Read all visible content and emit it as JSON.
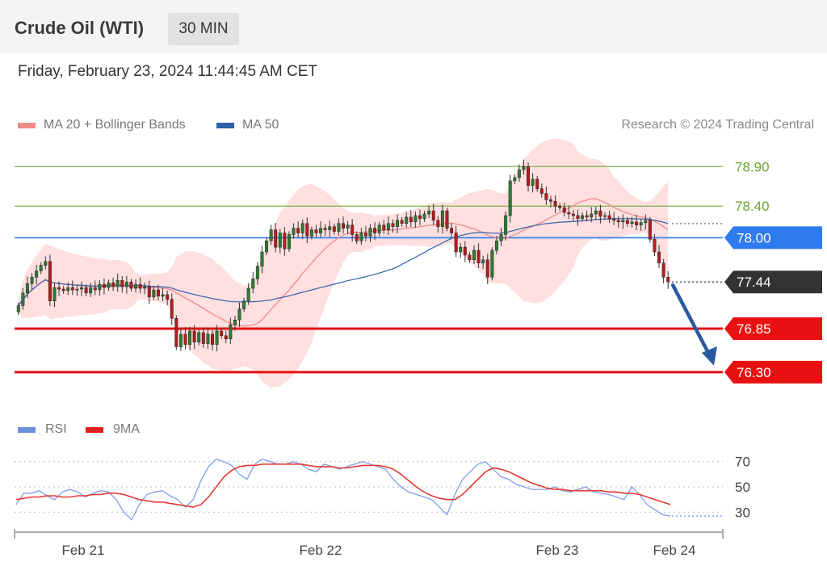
{
  "header": {
    "title": "Crude Oil (WTI)",
    "interval": "30 MIN"
  },
  "timestamp": "Friday, February 23, 2024 11:44:45 AM CET",
  "credit": "Research © 2024 Trading Central",
  "legend": [
    {
      "label": "MA 20 + Bollinger Bands",
      "color": "#f08a8a"
    },
    {
      "label": "MA 50",
      "color": "#2e5fa8"
    }
  ],
  "rsi_legend": [
    {
      "label": "RSI",
      "color": "#6f8fe0"
    },
    {
      "label": "9MA",
      "color": "#e02020"
    }
  ],
  "chart_data": [
    {
      "type": "candlestick",
      "ylim": [
        75.9,
        79.25
      ],
      "x_ticks": [
        "Feb 21",
        "Feb 22",
        "Feb 23",
        "Feb 24"
      ],
      "levels": [
        {
          "value": 78.9,
          "label": "78.90",
          "kind": "resistance",
          "color": "#7ab648"
        },
        {
          "value": 78.4,
          "label": "78.40",
          "kind": "resistance",
          "color": "#7ab648"
        },
        {
          "value": 78.0,
          "label": "78.00",
          "kind": "pivot",
          "color": "#2e7bf0"
        },
        {
          "value": 77.44,
          "label": "77.44",
          "kind": "last_price",
          "color": "#333333"
        },
        {
          "value": 76.85,
          "label": "76.85",
          "kind": "support",
          "color": "#e81010"
        },
        {
          "value": 76.3,
          "label": "76.30",
          "kind": "support",
          "color": "#e81010"
        }
      ],
      "close": [
        77.14,
        77.3,
        77.42,
        77.5,
        77.58,
        77.65,
        77.7,
        77.2,
        77.37,
        77.35,
        77.33,
        77.37,
        77.34,
        77.35,
        77.37,
        77.3,
        77.37,
        77.34,
        77.41,
        77.37,
        77.43,
        77.38,
        77.46,
        77.38,
        77.44,
        77.36,
        77.41,
        77.36,
        77.38,
        77.25,
        77.34,
        77.26,
        77.28,
        77.22,
        76.98,
        76.62,
        76.78,
        76.65,
        76.82,
        76.68,
        76.8,
        76.66,
        76.78,
        76.65,
        76.82,
        76.76,
        76.72,
        76.9,
        76.96,
        77.1,
        77.2,
        77.36,
        77.48,
        77.64,
        77.82,
        77.96,
        78.1,
        77.88,
        78.06,
        77.86,
        78.04,
        78.12,
        78.06,
        78.18,
        78.02,
        78.1,
        78.06,
        78.12,
        78.1,
        78.14,
        78.08,
        78.18,
        78.12,
        78.16,
        78.04,
        77.96,
        78.06,
        78.02,
        78.12,
        78.06,
        78.16,
        78.1,
        78.18,
        78.14,
        78.22,
        78.18,
        78.26,
        78.2,
        78.28,
        78.24,
        78.3,
        78.34,
        78.22,
        78.14,
        78.34,
        78.12,
        78.06,
        77.82,
        77.88,
        77.78,
        77.72,
        77.84,
        77.68,
        77.72,
        77.5,
        77.84,
        77.96,
        78.04,
        78.28,
        78.72,
        78.76,
        78.86,
        78.9,
        78.66,
        78.74,
        78.62,
        78.56,
        78.48,
        78.46,
        78.4,
        78.38,
        78.32,
        78.3,
        78.28,
        78.24,
        78.28,
        78.26,
        78.3,
        78.34,
        78.27,
        78.28,
        78.24,
        78.22,
        78.2,
        78.22,
        78.18,
        78.2,
        78.16,
        78.19,
        78.22,
        77.98,
        77.82,
        77.68,
        77.5,
        77.44
      ]
    },
    {
      "type": "line",
      "ylim": [
        20,
        80
      ],
      "y_ticks": [
        70,
        50,
        30
      ],
      "series": [
        {
          "name": "RSI",
          "values": [
            36,
            45,
            45,
            47,
            43,
            40,
            46,
            48,
            46,
            42,
            45,
            47,
            46,
            40,
            30,
            24,
            36,
            44,
            46,
            47,
            43,
            40,
            34,
            40,
            55,
            66,
            72,
            70,
            67,
            60,
            56,
            68,
            72,
            70,
            68,
            68,
            70,
            68,
            64,
            62,
            68,
            66,
            64,
            66,
            68,
            70,
            68,
            66,
            64,
            56,
            50,
            46,
            44,
            42,
            40,
            34,
            28,
            44,
            56,
            62,
            68,
            70,
            64,
            58,
            56,
            52,
            50,
            48,
            48,
            48,
            50,
            47,
            46,
            48,
            50,
            46,
            45,
            44,
            42,
            40,
            50,
            44,
            36,
            32,
            28,
            27
          ]
        },
        {
          "name": "9MA",
          "values": [
            40,
            41,
            42,
            42,
            43,
            43,
            42,
            42,
            43,
            43,
            44,
            44,
            45,
            45,
            44,
            42,
            40,
            39,
            38,
            38,
            37,
            36,
            35,
            34,
            36,
            42,
            50,
            58,
            63,
            66,
            67,
            67,
            68,
            68,
            68,
            68,
            68,
            68,
            67,
            66,
            66,
            66,
            65,
            65,
            66,
            67,
            67,
            67,
            66,
            64,
            60,
            55,
            50,
            46,
            43,
            41,
            40,
            40,
            44,
            50,
            56,
            62,
            65,
            64,
            62,
            59,
            56,
            53,
            51,
            49,
            48,
            48,
            47,
            47,
            47,
            47,
            47,
            46,
            46,
            45,
            45,
            44,
            42,
            40,
            38,
            36
          ]
        }
      ]
    }
  ]
}
